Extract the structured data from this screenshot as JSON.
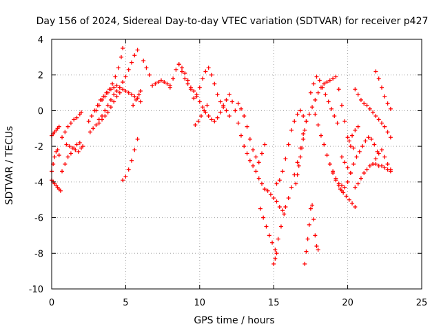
{
  "chart_data": {
    "type": "scatter",
    "title": "Day 156 of 2024, Sidereal Day-to-day VTEC variation (SDTVAR) for receiver p427",
    "xlabel": "GPS time / hours",
    "ylabel": "SDTVAR / TECUs",
    "xlim": [
      0,
      25
    ],
    "ylim": [
      -10,
      4
    ],
    "xticks": [
      0,
      5,
      10,
      15,
      20,
      25
    ],
    "yticks": [
      -10,
      -8,
      -6,
      -4,
      -2,
      0,
      2,
      4
    ],
    "xtick_labels": [
      "0",
      "5",
      "10",
      "15",
      "20",
      "25"
    ],
    "ytick_labels": [
      "-10",
      "-8",
      "-6",
      "-4",
      "-2",
      "0",
      "2",
      "4"
    ],
    "grid": true,
    "marker": "+",
    "color": "#ff0000",
    "series": [
      {
        "x": [
          0.0,
          0.1,
          0.2,
          0.3,
          0.4,
          0.5
        ],
        "y": [
          -1.4,
          -1.3,
          -1.2,
          -1.1,
          -1.0,
          -0.9
        ]
      },
      {
        "x": [
          0.0,
          0.1,
          0.2,
          0.3,
          0.4,
          0.5
        ],
        "y": [
          -3.4,
          -3.0,
          -2.6,
          -2.3,
          -2.2,
          -2.5
        ]
      },
      {
        "x": [
          0.0,
          0.1,
          0.2,
          0.3,
          0.4,
          0.5,
          0.6
        ],
        "y": [
          -3.9,
          -4.0,
          -4.1,
          -4.2,
          -4.3,
          -4.4,
          -4.5
        ]
      },
      {
        "x": [
          0.7,
          0.9,
          1.1,
          1.3,
          1.5,
          1.7,
          1.9,
          2.0
        ],
        "y": [
          -1.5,
          -1.2,
          -0.9,
          -0.7,
          -0.5,
          -0.4,
          -0.2,
          -0.1
        ]
      },
      {
        "x": [
          0.7,
          0.9,
          1.1,
          1.3,
          1.5,
          1.7,
          1.9,
          2.1
        ],
        "y": [
          -3.4,
          -3.0,
          -2.6,
          -2.4,
          -2.1,
          -1.9,
          -1.8,
          -2.0
        ]
      },
      {
        "x": [
          1.0,
          1.2,
          1.4,
          1.6,
          1.8,
          2.0
        ],
        "y": [
          -1.9,
          -2.0,
          -2.1,
          -2.2,
          -2.3,
          -2.1
        ]
      },
      {
        "x": [
          2.5,
          2.7,
          2.9,
          3.1,
          3.3,
          3.5,
          3.7,
          3.9,
          4.1,
          4.3,
          4.5,
          4.7,
          4.8
        ],
        "y": [
          -0.6,
          -0.3,
          0.0,
          0.3,
          0.6,
          0.8,
          1.0,
          1.2,
          1.5,
          1.9,
          2.4,
          3.0,
          3.5
        ]
      },
      {
        "x": [
          2.6,
          2.8,
          3.0,
          3.2,
          3.4,
          3.6,
          3.8,
          4.0,
          4.2,
          4.4,
          4.6,
          4.8,
          5.0,
          5.2,
          5.4,
          5.6,
          5.8
        ],
        "y": [
          -1.2,
          -1.0,
          -0.8,
          -0.5,
          -0.3,
          0.0,
          0.3,
          0.6,
          0.9,
          1.1,
          1.3,
          1.6,
          1.9,
          2.3,
          2.7,
          3.1,
          3.4
        ]
      },
      {
        "x": [
          3.0,
          3.2,
          3.4,
          3.6,
          3.8,
          4.0,
          4.2,
          4.4,
          4.6,
          4.8,
          5.0,
          5.2,
          5.4,
          5.6,
          5.8,
          6.0
        ],
        "y": [
          0.0,
          0.3,
          0.6,
          0.8,
          1.0,
          1.2,
          1.3,
          1.4,
          1.3,
          1.2,
          1.1,
          1.0,
          0.9,
          0.8,
          0.7,
          0.5
        ]
      },
      {
        "x": [
          3.2,
          3.4,
          3.6,
          3.8,
          4.0,
          4.2,
          4.4,
          4.6
        ],
        "y": [
          -0.7,
          -0.5,
          -0.3,
          -0.1,
          0.2,
          0.5,
          0.8,
          1.0
        ]
      },
      {
        "x": [
          5.5,
          5.7,
          5.9,
          6.0
        ],
        "y": [
          0.3,
          0.6,
          0.9,
          1.1
        ]
      },
      {
        "x": [
          4.8,
          5.0,
          5.2,
          5.4,
          5.6,
          5.8
        ],
        "y": [
          -3.9,
          -3.7,
          -3.3,
          -2.8,
          -2.2,
          -1.6
        ]
      },
      {
        "x": [
          6.2,
          6.4,
          6.6
        ],
        "y": [
          2.8,
          2.4,
          2.0
        ]
      },
      {
        "x": [
          6.8,
          7.0,
          7.2,
          7.4,
          7.6,
          7.8,
          8.0
        ],
        "y": [
          1.4,
          1.5,
          1.6,
          1.7,
          1.6,
          1.5,
          1.3
        ]
      },
      {
        "x": [
          8.0,
          8.2,
          8.4,
          8.6,
          8.8,
          9.0,
          9.2,
          9.4,
          9.6,
          9.8,
          10.0,
          10.2,
          10.4,
          10.6,
          10.8,
          11.0,
          11.2,
          11.4,
          11.6,
          11.8,
          12.0
        ],
        "y": [
          1.4,
          1.8,
          2.3,
          2.6,
          2.4,
          2.1,
          1.7,
          1.2,
          0.7,
          0.9,
          1.3,
          1.8,
          2.2,
          2.4,
          2.0,
          1.5,
          0.9,
          0.5,
          0.2,
          0.0,
          -0.3
        ]
      },
      {
        "x": [
          8.6,
          8.8,
          9.0,
          9.2,
          9.4,
          9.6,
          9.8,
          10.0,
          10.2,
          10.4,
          10.6,
          10.8,
          11.0,
          11.2,
          11.4,
          11.6,
          11.8,
          12.0,
          12.2,
          12.4,
          12.6,
          12.8,
          13.0,
          13.2,
          13.4,
          13.6,
          13.8,
          14.0,
          14.2,
          14.4
        ],
        "y": [
          2.6,
          2.2,
          1.8,
          1.5,
          1.3,
          1.1,
          0.8,
          0.5,
          0.2,
          -0.1,
          -0.3,
          -0.5,
          -0.6,
          -0.4,
          -0.1,
          0.3,
          0.6,
          0.9,
          0.5,
          0.0,
          -0.7,
          -1.4,
          -2.0,
          -2.4,
          -2.8,
          -3.1,
          -3.4,
          -3.8,
          -4.1,
          -4.4
        ]
      },
      {
        "x": [
          9.7,
          9.9,
          10.1,
          10.3,
          10.5
        ],
        "y": [
          -0.8,
          -0.6,
          -0.3,
          0.0,
          0.3
        ]
      },
      {
        "x": [
          12.6,
          12.8,
          13.0,
          13.2,
          13.4,
          13.6,
          13.8,
          14.0,
          14.2,
          14.4
        ],
        "y": [
          0.4,
          0.1,
          -0.3,
          -0.9,
          -1.6,
          -2.2,
          -2.6,
          -2.9,
          -2.4,
          -1.9
        ]
      },
      {
        "x": [
          14.1,
          14.3,
          14.5,
          14.7,
          14.9,
          15.1,
          15.3,
          15.5,
          15.7
        ],
        "y": [
          -5.5,
          -6.0,
          -6.5,
          -7.0,
          -7.4,
          -7.8,
          -7.2,
          -6.5,
          -5.8
        ]
      },
      {
        "x": [
          14.4,
          14.6,
          14.8,
          15.0,
          15.2,
          15.4,
          15.6,
          15.8,
          16.0,
          16.2,
          16.4,
          16.6,
          16.8,
          17.0,
          17.2
        ],
        "y": [
          -4.4,
          -4.5,
          -4.7,
          -4.9,
          -5.1,
          -5.4,
          -5.6,
          -5.4,
          -4.9,
          -4.3,
          -3.6,
          -2.9,
          -2.1,
          -1.3,
          -0.6
        ]
      },
      {
        "x": [
          15.0,
          15.1,
          15.2
        ],
        "y": [
          -8.6,
          -8.3,
          -8.0
        ]
      },
      {
        "x": [
          15.2,
          15.4,
          15.6,
          15.8,
          16.0,
          16.2,
          16.4,
          16.6,
          16.8,
          17.0,
          17.2,
          17.4,
          17.6,
          17.8,
          18.0,
          18.2,
          18.4,
          18.6,
          18.8,
          19.0
        ],
        "y": [
          -4.1,
          -3.9,
          -3.4,
          -2.7,
          -1.9,
          -1.1,
          -0.6,
          -0.2,
          0.0,
          -0.3,
          -0.6,
          -0.2,
          0.2,
          0.6,
          1.0,
          1.3,
          1.5,
          1.6,
          1.7,
          1.8
        ]
      },
      {
        "x": [
          16.5,
          16.6,
          16.7,
          16.8,
          16.9,
          17.0,
          17.1
        ],
        "y": [
          -4.1,
          -3.6,
          -3.1,
          -2.6,
          -2.1,
          -1.6,
          -1.1
        ]
      },
      {
        "x": [
          17.1,
          17.2,
          17.3,
          17.4,
          17.5,
          17.6,
          17.7,
          17.8,
          17.9,
          18.0
        ],
        "y": [
          -8.6,
          -7.9,
          -7.2,
          -6.4,
          -5.5,
          -5.3,
          -6.1,
          -7.0,
          -7.6,
          -7.8
        ]
      },
      {
        "x": [
          17.8,
          18.0,
          18.2,
          18.4,
          18.6,
          18.8,
          19.0,
          19.2,
          19.4,
          19.6
        ],
        "y": [
          -0.2,
          -0.8,
          -1.4,
          -1.9,
          -2.5,
          -3.0,
          -3.4,
          -3.8,
          -4.1,
          -4.2
        ]
      },
      {
        "x": [
          17.5,
          17.7,
          17.9,
          18.1,
          18.3,
          18.5,
          18.7,
          18.9,
          19.1,
          19.3
        ],
        "y": [
          1.0,
          1.5,
          1.9,
          1.7,
          1.3,
          0.9,
          0.5,
          0.1,
          -0.3,
          -0.7
        ]
      },
      {
        "x": [
          19.0,
          19.2,
          19.4,
          19.6,
          19.8,
          20.0,
          20.2,
          20.4,
          20.6,
          20.8,
          21.0,
          21.2,
          21.4,
          21.6,
          21.8,
          22.0
        ],
        "y": [
          -3.5,
          -3.9,
          -4.2,
          -4.5,
          -4.3,
          -4.0,
          -3.5,
          -3.0,
          -2.6,
          -2.3,
          -2.0,
          -1.7,
          -1.5,
          -1.6,
          -1.9,
          -2.3
        ]
      },
      {
        "x": [
          19.2,
          19.4,
          19.6,
          19.8,
          20.0,
          20.2,
          20.4
        ],
        "y": [
          1.9,
          1.2,
          0.3,
          -0.6,
          -1.5,
          -2.0,
          -2.1
        ]
      },
      {
        "x": [
          19.5,
          19.7,
          19.9,
          20.1,
          20.3,
          20.5
        ],
        "y": [
          -4.4,
          -4.6,
          -4.8,
          -5.0,
          -5.2,
          -5.4
        ]
      },
      {
        "x": [
          20.5,
          20.7,
          20.9,
          21.1,
          21.3,
          21.5,
          21.7,
          21.9,
          22.1,
          22.3,
          22.5,
          22.7,
          22.9
        ],
        "y": [
          1.2,
          0.9,
          0.6,
          0.4,
          0.3,
          0.1,
          -0.1,
          -0.3,
          -0.5,
          -0.7,
          -0.9,
          -1.2,
          -1.5
        ]
      },
      {
        "x": [
          20.5,
          20.7,
          20.9,
          21.1,
          21.3,
          21.5,
          21.7,
          21.9,
          22.1,
          22.3,
          22.5,
          22.7,
          22.9
        ],
        "y": [
          -4.3,
          -4.1,
          -3.8,
          -3.5,
          -3.3,
          -3.1,
          -3.0,
          -3.0,
          -3.1,
          -3.1,
          -3.2,
          -3.3,
          -3.4
        ]
      },
      {
        "x": [
          20.1,
          20.3,
          20.5,
          20.7
        ],
        "y": [
          -1.7,
          -1.4,
          -1.1,
          -0.9
        ]
      },
      {
        "x": [
          21.7,
          21.9,
          22.1,
          22.3,
          22.5,
          22.7,
          22.9
        ],
        "y": [
          -3.0,
          -2.7,
          -2.4,
          -2.2,
          -2.6,
          -3.0,
          -3.3
        ]
      },
      {
        "x": [
          21.9,
          22.1,
          22.3,
          22.5,
          22.7,
          22.9
        ],
        "y": [
          2.2,
          1.8,
          1.3,
          0.8,
          0.4,
          0.1
        ]
      },
      {
        "x": [
          19.6,
          19.8,
          20.0,
          20.2
        ],
        "y": [
          -2.6,
          -2.9,
          -3.2,
          -3.5
        ]
      }
    ]
  }
}
